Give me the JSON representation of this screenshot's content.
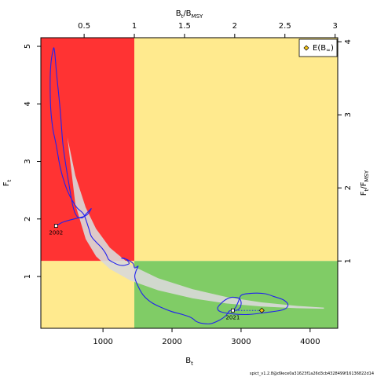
{
  "chart_data": {
    "type": "kobe",
    "title": "",
    "colors": {
      "overfished_overfishing": "#ff3333",
      "healthy": "#80cc66",
      "caution": "#ffea8e",
      "trajectory": "#2222ee",
      "confidence_band": "#d9d9d9",
      "expected_point_fill": "#f5c518"
    },
    "x_axis": {
      "label": "B",
      "label_sub": "t",
      "range": [
        100,
        4400
      ],
      "ticks": [
        "1000",
        "2000",
        "3000",
        "4000"
      ],
      "tick_values": [
        1000,
        2000,
        3000,
        4000
      ]
    },
    "y_axis": {
      "label": "F",
      "label_sub": "t",
      "range": [
        0.1,
        5.15
      ],
      "ticks": [
        "1",
        "2",
        "3",
        "4",
        "5"
      ],
      "tick_values": [
        1,
        2,
        3,
        4,
        5
      ]
    },
    "top_axis": {
      "label": "B",
      "label_sub": "t",
      "label_after": "/B",
      "label_sub2": "MSY",
      "ticks": [
        "0.5",
        "1",
        "1.5",
        "2",
        "2.5",
        "3"
      ],
      "tick_positions_b": [
        727,
        1454,
        2181,
        2908,
        3635,
        4362
      ]
    },
    "right_axis": {
      "label": "F",
      "label_sub": "t",
      "label_after": "/F",
      "label_sub2": "MSY",
      "ticks": [
        "1",
        "2",
        "3",
        "4"
      ],
      "tick_positions_f": [
        1.27,
        2.54,
        3.81,
        5.08
      ]
    },
    "reference": {
      "bmsy": 1454,
      "fmsy": 1.27
    },
    "legend": {
      "position": "top-right",
      "label": "E(B",
      "label_sub": "∞",
      "label_end": ")"
    },
    "annotations": {
      "start_label": "2002",
      "end_label": "2021"
    },
    "start_point": {
      "year": "2002",
      "B": 320,
      "F": 1.88
    },
    "end_point": {
      "year": "2021",
      "B": 2880,
      "F": 0.41
    },
    "expected_point": {
      "B": 3300,
      "F": 0.41
    },
    "trajectory": [
      [
        320,
        1.88
      ],
      [
        430,
        1.95
      ],
      [
        580,
        2.0
      ],
      [
        680,
        2.03
      ],
      [
        740,
        2.05
      ],
      [
        790,
        2.1
      ],
      [
        830,
        2.18
      ],
      [
        780,
        2.12
      ],
      [
        740,
        2.07
      ],
      [
        700,
        2.02
      ],
      [
        620,
        2.05
      ],
      [
        560,
        2.25
      ],
      [
        480,
        2.8
      ],
      [
        420,
        3.3
      ],
      [
        380,
        3.9
      ],
      [
        330,
        4.5
      ],
      [
        300,
        4.9
      ],
      [
        280,
        4.95
      ],
      [
        240,
        4.6
      ],
      [
        240,
        4.0
      ],
      [
        270,
        3.6
      ],
      [
        320,
        3.3
      ],
      [
        380,
        2.9
      ],
      [
        450,
        2.6
      ],
      [
        520,
        2.4
      ],
      [
        620,
        2.2
      ],
      [
        720,
        2.08
      ],
      [
        790,
        1.85
      ],
      [
        830,
        1.7
      ],
      [
        900,
        1.6
      ],
      [
        980,
        1.5
      ],
      [
        1040,
        1.4
      ],
      [
        1080,
        1.3
      ],
      [
        1140,
        1.25
      ],
      [
        1230,
        1.2
      ],
      [
        1290,
        1.19
      ],
      [
        1330,
        1.2
      ],
      [
        1380,
        1.23
      ],
      [
        1320,
        1.31
      ],
      [
        1270,
        1.32
      ],
      [
        1340,
        1.3
      ],
      [
        1400,
        1.26
      ],
      [
        1440,
        1.22
      ],
      [
        1460,
        1.15
      ],
      [
        1510,
        1.18
      ],
      [
        1480,
        1.1
      ],
      [
        1460,
        1.0
      ],
      [
        1490,
        0.88
      ],
      [
        1580,
        0.68
      ],
      [
        1700,
        0.55
      ],
      [
        1850,
        0.46
      ],
      [
        2000,
        0.39
      ],
      [
        2150,
        0.34
      ],
      [
        2250,
        0.3
      ],
      [
        2310,
        0.26
      ],
      [
        2350,
        0.22
      ],
      [
        2420,
        0.19
      ],
      [
        2560,
        0.18
      ],
      [
        2700,
        0.25
      ],
      [
        2780,
        0.32
      ],
      [
        2830,
        0.4
      ],
      [
        2880,
        0.41
      ],
      [
        2950,
        0.42
      ],
      [
        2990,
        0.47
      ],
      [
        3000,
        0.56
      ],
      [
        2970,
        0.62
      ],
      [
        2870,
        0.64
      ],
      [
        2780,
        0.6
      ],
      [
        2700,
        0.52
      ],
      [
        2660,
        0.45
      ],
      [
        2700,
        0.39
      ],
      [
        2880,
        0.35
      ],
      [
        3100,
        0.34
      ],
      [
        3330,
        0.37
      ],
      [
        3600,
        0.42
      ],
      [
        3680,
        0.5
      ],
      [
        3620,
        0.59
      ],
      [
        3480,
        0.65
      ],
      [
        3350,
        0.7
      ],
      [
        3180,
        0.71
      ],
      [
        3010,
        0.68
      ],
      [
        2960,
        0.56
      ],
      [
        2920,
        0.46
      ],
      [
        2880,
        0.41
      ]
    ],
    "expected_path": [
      [
        2880,
        0.41
      ],
      [
        3300,
        0.41
      ]
    ],
    "confidence_band": {
      "upper": [
        [
          485,
          3.42
        ],
        [
          600,
          2.75
        ],
        [
          750,
          2.2
        ],
        [
          900,
          1.83
        ],
        [
          1100,
          1.5
        ],
        [
          1400,
          1.2
        ],
        [
          1800,
          0.97
        ],
        [
          2300,
          0.78
        ],
        [
          2800,
          0.64
        ],
        [
          3300,
          0.55
        ],
        [
          3800,
          0.49
        ],
        [
          4200,
          0.46
        ]
      ],
      "lower": [
        [
          4200,
          0.44
        ],
        [
          3800,
          0.45
        ],
        [
          3300,
          0.48
        ],
        [
          2800,
          0.53
        ],
        [
          2300,
          0.62
        ],
        [
          1800,
          0.76
        ],
        [
          1400,
          0.93
        ],
        [
          1100,
          1.13
        ],
        [
          900,
          1.35
        ],
        [
          750,
          1.65
        ],
        [
          600,
          2.25
        ],
        [
          485,
          3.42
        ]
      ]
    }
  },
  "footer": "spict_v1.2.8@d9ece0a31623f1a26d3cb4328499f16136822d14"
}
